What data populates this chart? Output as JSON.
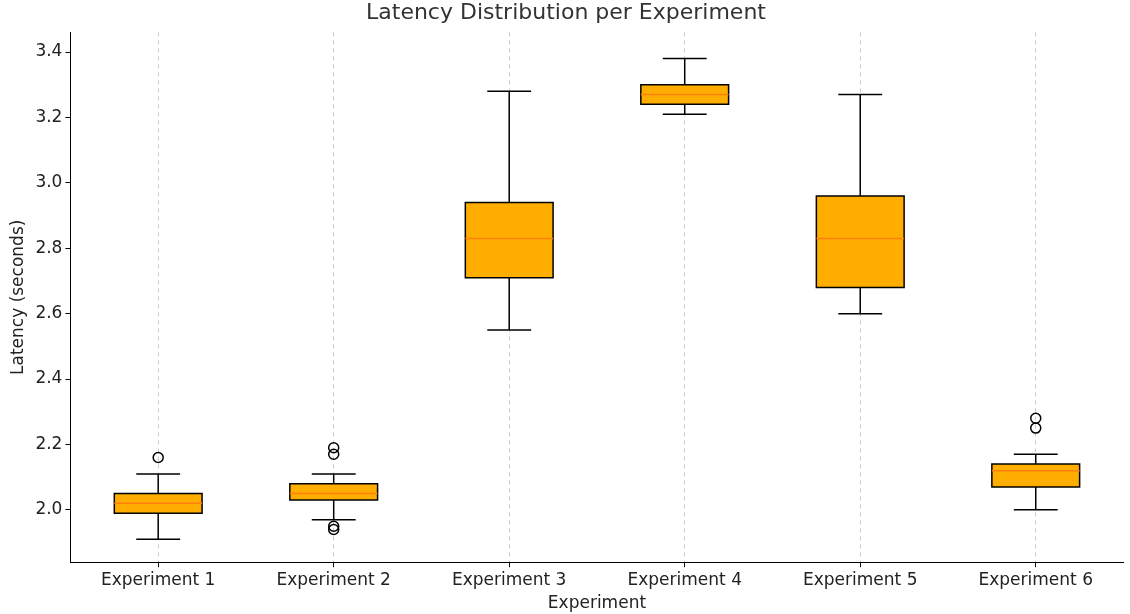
{
  "chart_data": {
    "type": "box",
    "title": "Latency Distribution per Experiment",
    "xlabel": "Experiment",
    "ylabel": "Latency (seconds)",
    "categories": [
      "Experiment 1",
      "Experiment 2",
      "Experiment 3",
      "Experiment 4",
      "Experiment 5",
      "Experiment 6"
    ],
    "series": [
      {
        "color": "#ffae00",
        "boxes": [
          {
            "low": 1.91,
            "q1": 1.99,
            "median": 2.02,
            "q3": 2.05,
            "high": 2.11,
            "outliers": [
              2.16
            ]
          },
          {
            "low": 1.97,
            "q1": 2.03,
            "median": 2.05,
            "q3": 2.08,
            "high": 2.11,
            "outliers": [
              2.19,
              2.17,
              1.95,
              1.94
            ]
          },
          {
            "low": 2.55,
            "q1": 2.71,
            "median": 2.83,
            "q3": 2.94,
            "high": 3.28
          },
          {
            "low": 3.21,
            "q1": 3.24,
            "median": 3.27,
            "q3": 3.3,
            "high": 3.38
          },
          {
            "low": 2.6,
            "q1": 2.68,
            "median": 2.83,
            "q3": 2.96,
            "high": 3.27
          },
          {
            "low": 2.0,
            "q1": 2.07,
            "median": 2.12,
            "q3": 2.14,
            "high": 2.17,
            "outliers": [
              2.28,
              2.25
            ]
          }
        ]
      }
    ],
    "ylim": [
      1.84,
      3.46
    ],
    "yticks": [
      {
        "value": 2,
        "label": "2.0"
      },
      2.2,
      2.4,
      2.6,
      2.8,
      {
        "value": 3,
        "label": "3.0"
      },
      3.2,
      3.4
    ],
    "grid": "x"
  }
}
